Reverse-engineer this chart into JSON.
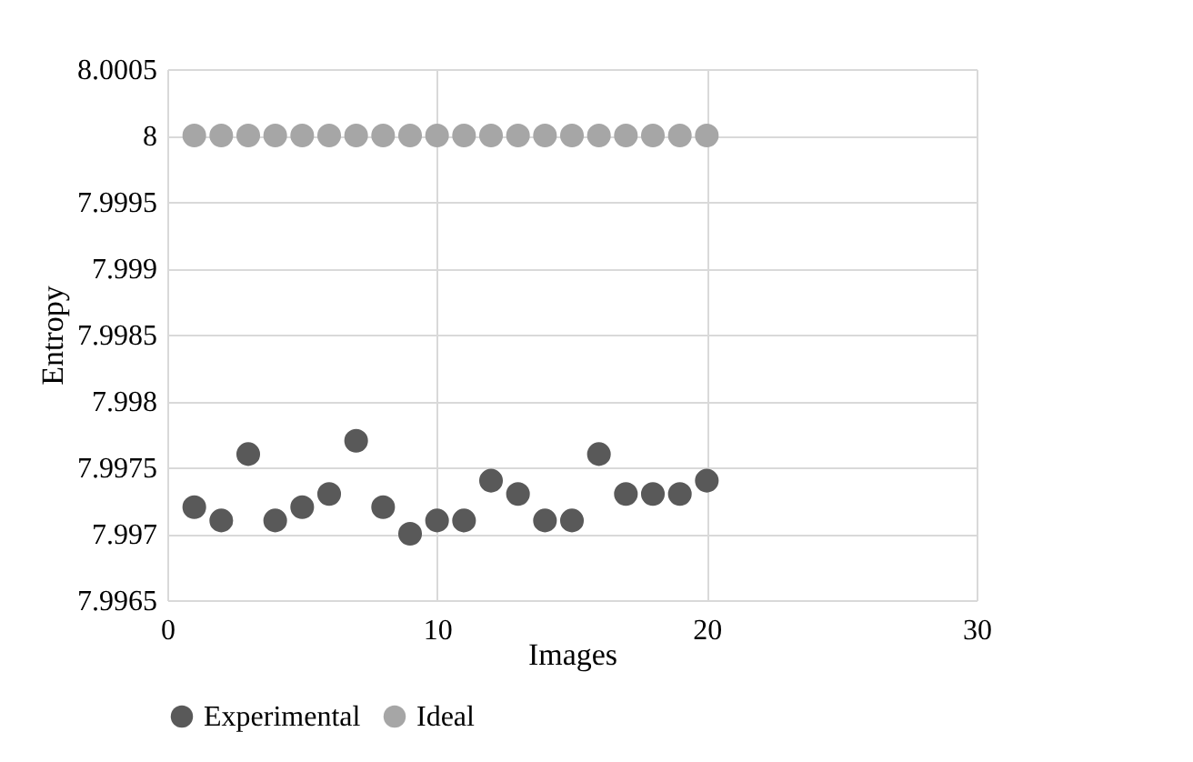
{
  "chart_data": {
    "type": "scatter",
    "xlabel": "Images",
    "ylabel": "Entropy",
    "x": [
      1,
      2,
      3,
      4,
      5,
      6,
      7,
      8,
      9,
      10,
      11,
      12,
      13,
      14,
      15,
      16,
      17,
      18,
      19,
      20
    ],
    "series": [
      {
        "name": "Experimental",
        "color": "#595959",
        "values": [
          7.9972,
          7.9971,
          7.9976,
          7.9971,
          7.9972,
          7.9973,
          7.9977,
          7.9972,
          7.997,
          7.9971,
          7.9971,
          7.9974,
          7.9973,
          7.9971,
          7.9971,
          7.9976,
          7.9973,
          7.9973,
          7.9973,
          7.9974
        ]
      },
      {
        "name": "Ideal",
        "color": "#a6a6a6",
        "values": [
          8,
          8,
          8,
          8,
          8,
          8,
          8,
          8,
          8,
          8,
          8,
          8,
          8,
          8,
          8,
          8,
          8,
          8,
          8,
          8
        ]
      }
    ],
    "xlim": [
      0,
      30
    ],
    "xticks": [
      0,
      10,
      20,
      30
    ],
    "ylim": [
      7.9965,
      8.0005
    ],
    "yticks": [
      7.9965,
      7.997,
      7.9975,
      7.998,
      7.9985,
      7.999,
      7.9995,
      8,
      8.0005
    ],
    "grid": true,
    "legend": "bottom",
    "marker": "circle"
  }
}
